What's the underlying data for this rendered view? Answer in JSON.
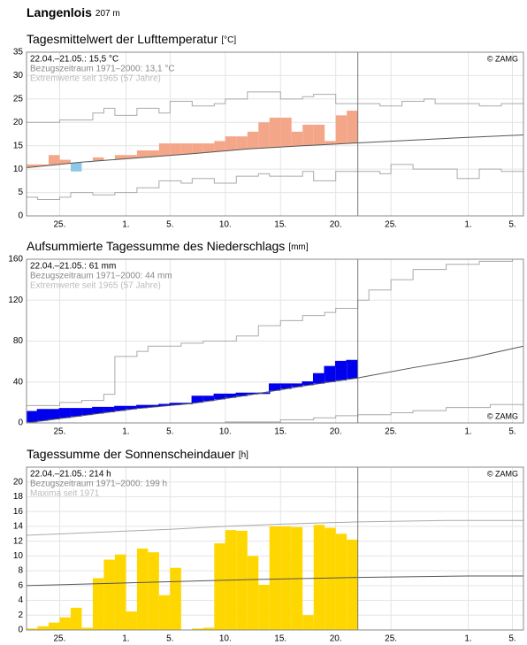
{
  "header": {
    "title": "Langenlois",
    "subtitle": "207 m"
  },
  "chart_data": [
    {
      "type": "temperature",
      "title": "Tagesmittelwert der Lufttemperatur",
      "unit": "[°C]",
      "info": [
        "22.04.–21.05.: 15,5 °C",
        "Bezugszeitraum 1971–2000: 13,1 °C",
        "Extremwerte seit 1965 (57 Jahre)"
      ],
      "copyright": "© ZAMG",
      "copyright_position": "top",
      "x": [
        22,
        23,
        24,
        25,
        26,
        27,
        28,
        29,
        30,
        31,
        32,
        33,
        34,
        35,
        36,
        37,
        38,
        39,
        40,
        41,
        42,
        43,
        44,
        45,
        46,
        47,
        48,
        49,
        50,
        51
      ],
      "values": [
        11,
        11,
        13,
        12,
        9.5,
        11.5,
        12.5,
        12,
        13,
        13,
        14,
        14,
        15.5,
        15.5,
        15.5,
        15.5,
        15.5,
        16,
        17,
        17,
        18,
        20,
        21,
        21,
        18,
        19.5,
        19.5,
        16,
        21.5,
        22.5
      ],
      "colors": {
        "above": "#f4a689",
        "below": "#8fc8e6"
      },
      "lines": {
        "mean": {
          "x": [
            22,
            27,
            32,
            37,
            42,
            47,
            52,
            57,
            62,
            67
          ],
          "values": [
            10.3,
            11.5,
            12.4,
            13.3,
            14.3,
            15,
            15.6,
            16.2,
            16.8,
            17.3
          ],
          "color": "#555555",
          "step": false
        },
        "max": {
          "x": [
            22,
            25,
            28,
            29,
            30,
            32,
            34,
            35,
            37,
            39,
            40,
            42,
            45,
            47,
            48,
            50,
            52,
            54,
            56,
            58,
            59,
            61,
            63,
            65,
            67
          ],
          "values": [
            20,
            20.5,
            22,
            23,
            21.5,
            23,
            22,
            24.5,
            23.5,
            24,
            25,
            26.5,
            25,
            25.5,
            26,
            24,
            24,
            23.5,
            24.5,
            25,
            24,
            24,
            23.5,
            24,
            24
          ],
          "color": "#aaaaaa",
          "step": true
        },
        "min": {
          "x": [
            22,
            23,
            25,
            26,
            28,
            30,
            32,
            34,
            36,
            37,
            39,
            41,
            43,
            44,
            47,
            48,
            50,
            52,
            54,
            55,
            57,
            59,
            61,
            63,
            65,
            67
          ],
          "values": [
            4,
            3.5,
            4,
            5,
            4.5,
            5,
            6,
            7.5,
            7,
            8,
            7,
            8.5,
            9,
            8.5,
            9.5,
            7.5,
            9.5,
            9.5,
            9,
            11,
            10,
            10,
            8,
            10,
            9.5,
            10
          ],
          "color": "#aaaaaa",
          "step": true
        }
      },
      "divider": 52,
      "xlim": [
        22,
        67
      ],
      "xticks": [
        {
          "value": 25,
          "label": "25."
        },
        {
          "value": 31,
          "label": "1."
        },
        {
          "value": 35,
          "label": "5."
        },
        {
          "value": 40,
          "label": "10."
        },
        {
          "value": 45,
          "label": "15."
        },
        {
          "value": 50,
          "label": "20."
        },
        {
          "value": 55,
          "label": "25."
        },
        {
          "value": 62,
          "label": "1."
        },
        {
          "value": 66,
          "label": "5."
        }
      ],
      "ylim": [
        0,
        35
      ],
      "yticks": [
        0,
        5,
        10,
        15,
        20,
        25,
        30,
        35
      ],
      "grid": true
    },
    {
      "type": "cumulative",
      "title": "Aufsummierte Tagessumme des Niederschlags",
      "unit": "[mm]",
      "info": [
        "22.04.–21.05.: 61 mm",
        "Bezugszeitraum 1971–2000: 44 mm",
        "Extremwerte seit 1965 (57 Jahre)"
      ],
      "copyright": "© ZAMG",
      "copyright_position": "bottom",
      "x": [
        22,
        23,
        24,
        25,
        26,
        27,
        28,
        29,
        30,
        31,
        32,
        33,
        34,
        35,
        36,
        37,
        38,
        39,
        40,
        41,
        42,
        43,
        44,
        45,
        46,
        47,
        48,
        49,
        50,
        51
      ],
      "values": [
        11,
        13,
        13,
        14,
        14,
        14,
        15,
        15,
        16,
        16,
        17,
        17,
        18,
        19,
        19,
        26,
        26,
        28,
        28,
        29,
        29,
        29,
        38,
        38,
        38,
        40,
        48,
        55,
        60,
        61
      ],
      "colors": {
        "above": "#0000ee",
        "below": "#e0f2d9",
        "line": "#0000ee"
      },
      "lines": {
        "mean": {
          "x": [
            22,
            27,
            32,
            37,
            42,
            47,
            52,
            57,
            62,
            67
          ],
          "values": [
            0,
            7,
            14,
            19,
            27,
            36,
            44,
            54,
            63,
            75
          ],
          "color": "#555555",
          "step": false
        },
        "max": {
          "x": [
            22,
            25,
            27,
            29,
            30,
            32,
            33,
            36,
            38,
            41,
            43,
            45,
            47,
            49,
            50,
            52,
            53,
            55,
            57,
            60,
            63,
            66,
            67
          ],
          "values": [
            17,
            20,
            22,
            28,
            65,
            70,
            75,
            78,
            80,
            85,
            95,
            100,
            105,
            108,
            112,
            120,
            130,
            140,
            150,
            155,
            158,
            160,
            160
          ],
          "color": "#aaaaaa",
          "step": true
        },
        "min": {
          "x": [
            22,
            40,
            45,
            48,
            50,
            52,
            55,
            57,
            60,
            64,
            67
          ],
          "values": [
            0,
            1,
            3,
            5,
            7,
            8,
            10,
            12,
            15,
            18,
            20
          ],
          "color": "#aaaaaa",
          "step": true
        }
      },
      "divider": 52,
      "xlim": [
        22,
        67
      ],
      "xticks": [
        {
          "value": 25,
          "label": "25."
        },
        {
          "value": 31,
          "label": "1."
        },
        {
          "value": 35,
          "label": "5."
        },
        {
          "value": 40,
          "label": "10."
        },
        {
          "value": 45,
          "label": "15."
        },
        {
          "value": 50,
          "label": "20."
        },
        {
          "value": 55,
          "label": "25."
        },
        {
          "value": 62,
          "label": "1."
        },
        {
          "value": 66,
          "label": "5."
        }
      ],
      "ylim": [
        0,
        160
      ],
      "yticks": [
        0,
        40,
        80,
        120,
        160
      ],
      "grid": true
    },
    {
      "type": "bar",
      "title": "Tagessumme der Sonnenscheindauer",
      "unit": "[h]",
      "info": [
        "22.04.–21.05.: 214 h",
        "Bezugszeitraum 1971–2000: 199 h",
        "Maxima seit 1971"
      ],
      "copyright": "© ZAMG",
      "copyright_position": "top",
      "x": [
        22,
        23,
        24,
        25,
        26,
        27,
        28,
        29,
        30,
        31,
        32,
        33,
        34,
        35,
        36,
        37,
        38,
        39,
        40,
        41,
        42,
        43,
        44,
        45,
        46,
        47,
        48,
        49,
        50,
        51
      ],
      "values": [
        0.2,
        0.5,
        1,
        1.7,
        3,
        0.3,
        7,
        9.5,
        10.2,
        2.5,
        11,
        10.5,
        4.7,
        8.4,
        0,
        0.2,
        0.3,
        11.7,
        13.5,
        13.4,
        10,
        6.1,
        14,
        14,
        13.9,
        2,
        14.2,
        13.8,
        13,
        12.2
      ],
      "color": "#ffd700",
      "lines": {
        "mean": {
          "x": [
            22,
            32,
            42,
            52,
            62,
            67
          ],
          "values": [
            6,
            6.4,
            6.8,
            7.1,
            7.3,
            7.3
          ],
          "color": "#555555",
          "step": false
        },
        "max": {
          "x": [
            22,
            30,
            35,
            40,
            45,
            52,
            60,
            67
          ],
          "values": [
            12.8,
            13.3,
            13.6,
            14,
            14.3,
            14.6,
            14.8,
            14.8
          ],
          "color": "#aaaaaa",
          "step": false
        }
      },
      "divider": 52,
      "xlim": [
        22,
        67
      ],
      "xticks": [
        {
          "value": 25,
          "label": "25."
        },
        {
          "value": 31,
          "label": "1."
        },
        {
          "value": 35,
          "label": "5."
        },
        {
          "value": 40,
          "label": "10."
        },
        {
          "value": 45,
          "label": "15."
        },
        {
          "value": 50,
          "label": "20."
        },
        {
          "value": 55,
          "label": "25."
        },
        {
          "value": 62,
          "label": "1."
        },
        {
          "value": 66,
          "label": "5."
        }
      ],
      "ylim": [
        0,
        22
      ],
      "yticks": [
        0,
        2,
        4,
        6,
        8,
        10,
        12,
        14,
        16,
        18,
        20
      ],
      "grid": true
    }
  ]
}
